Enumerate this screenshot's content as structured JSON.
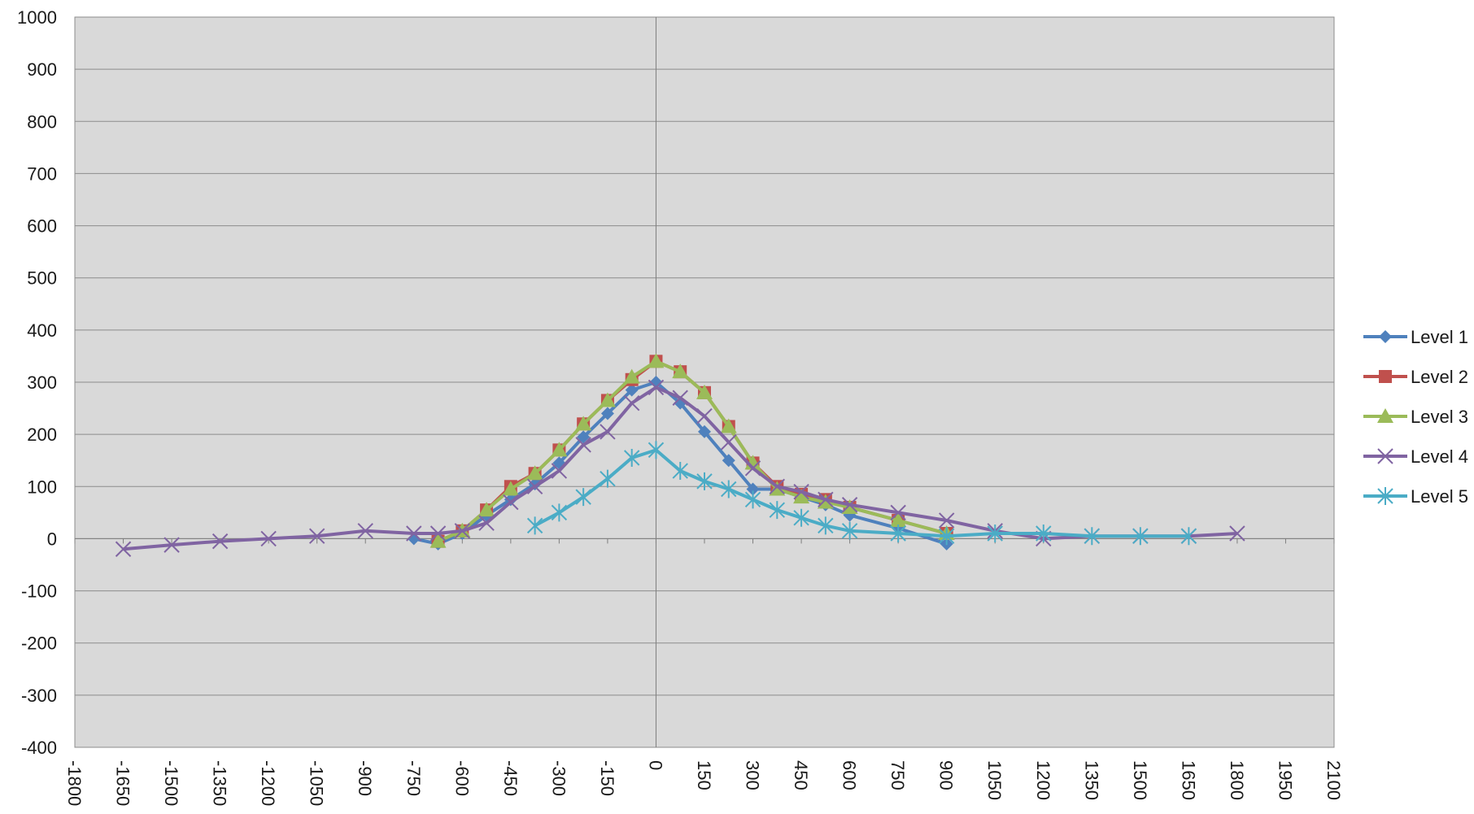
{
  "chart_data": {
    "type": "scatter",
    "title": "",
    "xlabel": "",
    "ylabel": "",
    "xlim": [
      -1800,
      2100
    ],
    "ylim": [
      -400,
      1000
    ],
    "x_ticks": [
      -1800,
      -1650,
      -1500,
      -1350,
      -1200,
      -1050,
      -900,
      -750,
      -600,
      -450,
      -300,
      -150,
      0,
      150,
      300,
      450,
      600,
      750,
      900,
      1050,
      1200,
      1350,
      1500,
      1650,
      1800,
      1950,
      2100
    ],
    "y_ticks": [
      -400,
      -300,
      -200,
      -100,
      0,
      100,
      200,
      300,
      400,
      500,
      600,
      700,
      800,
      900,
      1000
    ],
    "grid": "horizontal",
    "legend_position": "right",
    "plot_background": "#d9d9d9",
    "series": [
      {
        "name": "Level 1",
        "color": "#4f81bd",
        "marker": "diamond",
        "points": [
          [
            -750,
            0
          ],
          [
            -675,
            -10
          ],
          [
            -600,
            10
          ],
          [
            -525,
            45
          ],
          [
            -450,
            75
          ],
          [
            -375,
            105
          ],
          [
            -300,
            145
          ],
          [
            -225,
            195
          ],
          [
            -150,
            240
          ],
          [
            -75,
            285
          ],
          [
            0,
            300
          ],
          [
            75,
            260
          ],
          [
            150,
            205
          ],
          [
            225,
            150
          ],
          [
            300,
            95
          ],
          [
            375,
            95
          ],
          [
            450,
            80
          ],
          [
            525,
            65
          ],
          [
            600,
            45
          ],
          [
            750,
            20
          ],
          [
            900,
            -10
          ]
        ]
      },
      {
        "name": "Level 2",
        "color": "#c0504d",
        "marker": "square",
        "points": [
          [
            -675,
            -5
          ],
          [
            -600,
            15
          ],
          [
            -525,
            55
          ],
          [
            -450,
            100
          ],
          [
            -375,
            125
          ],
          [
            -300,
            170
          ],
          [
            -225,
            220
          ],
          [
            -150,
            265
          ],
          [
            -75,
            305
          ],
          [
            0,
            340
          ],
          [
            75,
            320
          ],
          [
            150,
            280
          ],
          [
            225,
            215
          ],
          [
            300,
            145
          ],
          [
            375,
            100
          ],
          [
            450,
            85
          ],
          [
            525,
            75
          ],
          [
            600,
            60
          ],
          [
            750,
            35
          ],
          [
            900,
            10
          ]
        ]
      },
      {
        "name": "Level 3",
        "color": "#9bbb59",
        "marker": "triangle",
        "points": [
          [
            -675,
            -5
          ],
          [
            -600,
            15
          ],
          [
            -525,
            55
          ],
          [
            -450,
            95
          ],
          [
            -375,
            125
          ],
          [
            -300,
            170
          ],
          [
            -225,
            220
          ],
          [
            -150,
            265
          ],
          [
            -75,
            310
          ],
          [
            0,
            340
          ],
          [
            75,
            320
          ],
          [
            150,
            280
          ],
          [
            225,
            215
          ],
          [
            300,
            145
          ],
          [
            375,
            95
          ],
          [
            450,
            80
          ],
          [
            525,
            70
          ],
          [
            600,
            60
          ],
          [
            750,
            35
          ],
          [
            900,
            10
          ]
        ]
      },
      {
        "name": "Level 4",
        "color": "#8064a2",
        "marker": "x",
        "points": [
          [
            -1650,
            -20
          ],
          [
            -1500,
            -12
          ],
          [
            -1350,
            -5
          ],
          [
            -1200,
            0
          ],
          [
            -1050,
            5
          ],
          [
            -900,
            15
          ],
          [
            -750,
            10
          ],
          [
            -675,
            10
          ],
          [
            -600,
            15
          ],
          [
            -525,
            30
          ],
          [
            -450,
            70
          ],
          [
            -375,
            100
          ],
          [
            -300,
            130
          ],
          [
            -225,
            180
          ],
          [
            -150,
            205
          ],
          [
            -75,
            260
          ],
          [
            0,
            290
          ],
          [
            75,
            270
          ],
          [
            150,
            235
          ],
          [
            225,
            185
          ],
          [
            300,
            135
          ],
          [
            375,
            100
          ],
          [
            450,
            90
          ],
          [
            525,
            75
          ],
          [
            600,
            65
          ],
          [
            750,
            50
          ],
          [
            900,
            35
          ],
          [
            1050,
            15
          ],
          [
            1200,
            0
          ],
          [
            1350,
            5
          ],
          [
            1500,
            5
          ],
          [
            1650,
            5
          ],
          [
            1800,
            10
          ]
        ]
      },
      {
        "name": "Level 5",
        "color": "#4bacc6",
        "marker": "star",
        "points": [
          [
            -375,
            25
          ],
          [
            -300,
            50
          ],
          [
            -225,
            80
          ],
          [
            -150,
            115
          ],
          [
            -75,
            155
          ],
          [
            0,
            170
          ],
          [
            75,
            130
          ],
          [
            150,
            110
          ],
          [
            225,
            95
          ],
          [
            300,
            75
          ],
          [
            375,
            55
          ],
          [
            450,
            40
          ],
          [
            525,
            25
          ],
          [
            600,
            15
          ],
          [
            750,
            10
          ],
          [
            900,
            5
          ],
          [
            1050,
            10
          ],
          [
            1200,
            10
          ],
          [
            1350,
            5
          ],
          [
            1500,
            5
          ],
          [
            1650,
            5
          ]
        ]
      }
    ]
  }
}
